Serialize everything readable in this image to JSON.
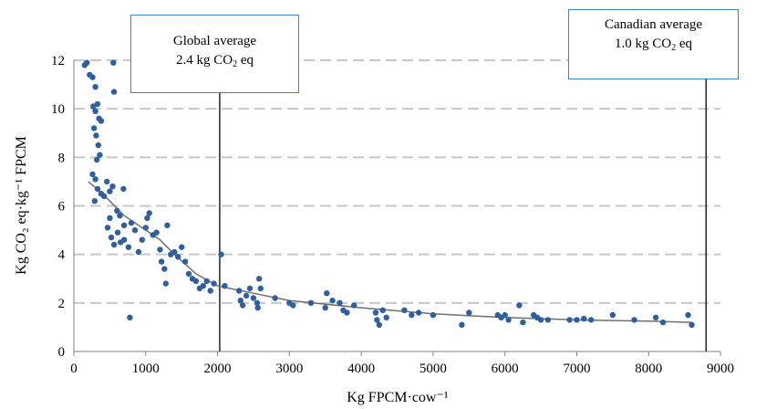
{
  "chart_data": {
    "type": "scatter",
    "title": "",
    "xlabel": "Kg FPCM·cow⁻¹",
    "ylabel": "Kg CO₂ eq·kg⁻¹ FPCM",
    "xlim": [
      0,
      9000
    ],
    "ylim": [
      0,
      12
    ],
    "x_ticks": [
      "0",
      "1000",
      "2000",
      "3000",
      "4000",
      "5000",
      "6000",
      "7000",
      "8000",
      "9000"
    ],
    "y_ticks": [
      "0",
      "2",
      "4",
      "6",
      "8",
      "10",
      "12"
    ],
    "grid": "horizontal dashed",
    "point_color": "#2e5f9e",
    "trend_color": "#6f6f6f",
    "annotations": {
      "global": {
        "line1": "Global average",
        "line2_prefix": "2.4 kg CO",
        "line2_sub": "2",
        "line2_suffix": " eq",
        "x_line": 2030
      },
      "canada": {
        "line1": "Canadian average",
        "line2_prefix": "1.0 kg CO",
        "line2_sub": "2",
        "line2_suffix": " eq",
        "x_line": 8800
      }
    },
    "trend_line": [
      [
        200,
        7.0
      ],
      [
        400,
        6.5
      ],
      [
        700,
        5.6
      ],
      [
        1000,
        5.0
      ],
      [
        1200,
        4.6
      ],
      [
        1400,
        4.0
      ],
      [
        1700,
        3.2
      ],
      [
        2000,
        2.7
      ],
      [
        2500,
        2.4
      ],
      [
        3000,
        2.1
      ],
      [
        4000,
        1.8
      ],
      [
        5000,
        1.55
      ],
      [
        6000,
        1.4
      ],
      [
        7000,
        1.3
      ],
      [
        8000,
        1.25
      ],
      [
        8600,
        1.2
      ]
    ],
    "points": [
      [
        150,
        11.8
      ],
      [
        180,
        11.9
      ],
      [
        220,
        11.4
      ],
      [
        260,
        11.3
      ],
      [
        300,
        10.9
      ],
      [
        330,
        10.2
      ],
      [
        350,
        9.6
      ],
      [
        380,
        9.5
      ],
      [
        270,
        10.1
      ],
      [
        300,
        9.9
      ],
      [
        280,
        9.2
      ],
      [
        310,
        8.9
      ],
      [
        340,
        8.5
      ],
      [
        360,
        8.1
      ],
      [
        320,
        7.9
      ],
      [
        260,
        7.3
      ],
      [
        300,
        7.1
      ],
      [
        290,
        6.2
      ],
      [
        330,
        6.7
      ],
      [
        380,
        6.5
      ],
      [
        420,
        6.4
      ],
      [
        460,
        7.0
      ],
      [
        500,
        6.6
      ],
      [
        540,
        6.8
      ],
      [
        550,
        11.9
      ],
      [
        560,
        10.7
      ],
      [
        600,
        5.8
      ],
      [
        640,
        5.6
      ],
      [
        690,
        6.7
      ],
      [
        700,
        5.2
      ],
      [
        470,
        5.1
      ],
      [
        500,
        5.5
      ],
      [
        520,
        4.7
      ],
      [
        560,
        4.4
      ],
      [
        610,
        4.9
      ],
      [
        650,
        4.5
      ],
      [
        700,
        4.6
      ],
      [
        760,
        4.3
      ],
      [
        780,
        1.4
      ],
      [
        800,
        5.3
      ],
      [
        850,
        5.0
      ],
      [
        900,
        4.1
      ],
      [
        950,
        4.6
      ],
      [
        1000,
        5.1
      ],
      [
        1020,
        5.5
      ],
      [
        1050,
        5.7
      ],
      [
        1100,
        4.8
      ],
      [
        1150,
        4.9
      ],
      [
        1200,
        4.2
      ],
      [
        1220,
        3.7
      ],
      [
        1260,
        3.4
      ],
      [
        1280,
        2.8
      ],
      [
        1300,
        5.2
      ],
      [
        1350,
        4.0
      ],
      [
        1400,
        4.1
      ],
      [
        1450,
        3.9
      ],
      [
        1500,
        4.3
      ],
      [
        1550,
        3.7
      ],
      [
        1600,
        3.2
      ],
      [
        1650,
        3.0
      ],
      [
        1700,
        2.9
      ],
      [
        1750,
        2.6
      ],
      [
        1800,
        2.7
      ],
      [
        1850,
        2.9
      ],
      [
        1900,
        2.5
      ],
      [
        1950,
        2.8
      ],
      [
        2050,
        4.0
      ],
      [
        2100,
        2.7
      ],
      [
        2300,
        2.5
      ],
      [
        2320,
        2.1
      ],
      [
        2350,
        1.9
      ],
      [
        2400,
        2.3
      ],
      [
        2450,
        2.6
      ],
      [
        2500,
        2.2
      ],
      [
        2550,
        2.0
      ],
      [
        2560,
        1.8
      ],
      [
        2580,
        3.0
      ],
      [
        2600,
        2.6
      ],
      [
        2800,
        2.2
      ],
      [
        3000,
        2.0
      ],
      [
        3050,
        1.9
      ],
      [
        3300,
        2.0
      ],
      [
        3500,
        1.8
      ],
      [
        3520,
        2.4
      ],
      [
        3600,
        2.1
      ],
      [
        3700,
        2.0
      ],
      [
        3750,
        1.7
      ],
      [
        3800,
        1.6
      ],
      [
        3900,
        1.9
      ],
      [
        4200,
        1.6
      ],
      [
        4220,
        1.3
      ],
      [
        4250,
        1.1
      ],
      [
        4300,
        1.7
      ],
      [
        4350,
        1.4
      ],
      [
        4600,
        1.7
      ],
      [
        4700,
        1.5
      ],
      [
        4800,
        1.6
      ],
      [
        5000,
        1.5
      ],
      [
        5400,
        1.1
      ],
      [
        5500,
        1.6
      ],
      [
        5900,
        1.5
      ],
      [
        5950,
        1.4
      ],
      [
        6000,
        1.5
      ],
      [
        6050,
        1.3
      ],
      [
        6200,
        1.9
      ],
      [
        6250,
        1.2
      ],
      [
        6400,
        1.5
      ],
      [
        6450,
        1.4
      ],
      [
        6500,
        1.3
      ],
      [
        6600,
        1.3
      ],
      [
        6900,
        1.3
      ],
      [
        7000,
        1.3
      ],
      [
        7100,
        1.35
      ],
      [
        7200,
        1.3
      ],
      [
        7500,
        1.5
      ],
      [
        7800,
        1.3
      ],
      [
        8100,
        1.4
      ],
      [
        8200,
        1.2
      ],
      [
        8550,
        1.5
      ],
      [
        8600,
        1.1
      ]
    ]
  }
}
